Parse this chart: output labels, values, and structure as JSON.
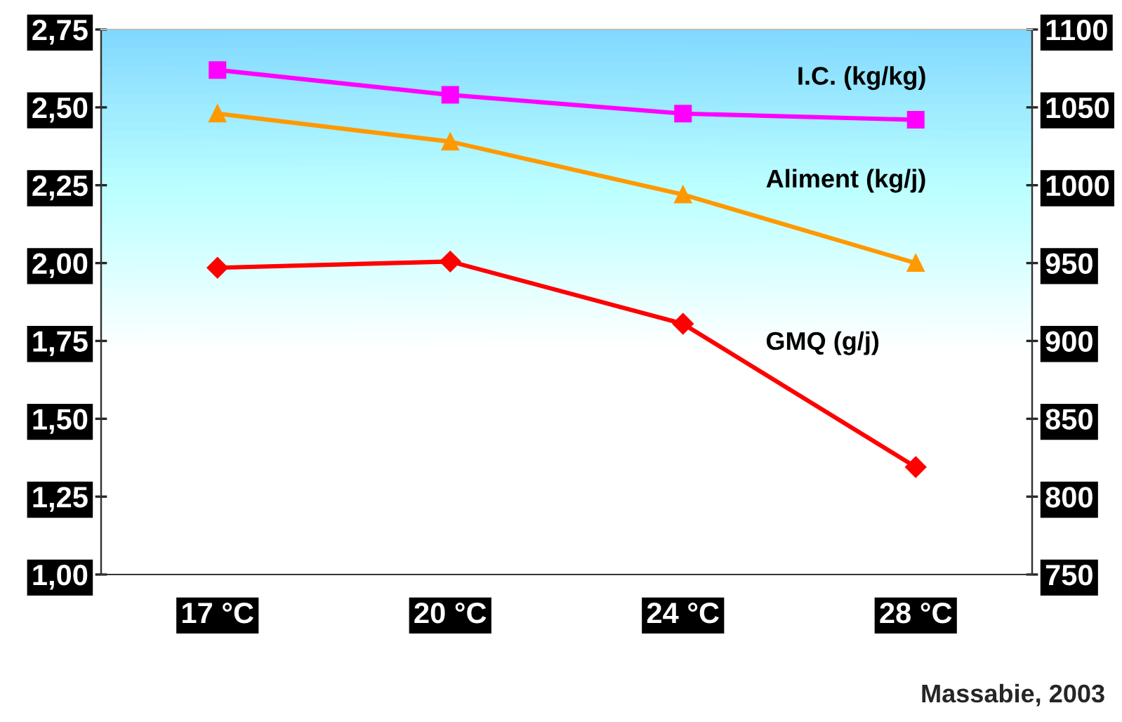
{
  "chart_data": {
    "type": "line",
    "categories": [
      "17 °C",
      "20 °C",
      "24 °C",
      "28 °C"
    ],
    "series": [
      {
        "name": "I.C. (kg/kg)",
        "color": "#ff00ff",
        "marker": "square",
        "values": [
          2.62,
          2.54,
          2.48,
          2.46
        ]
      },
      {
        "name": "Aliment (kg/j)",
        "color": "#ff9900",
        "marker": "triangle",
        "values": [
          2.48,
          2.39,
          2.22,
          2.0
        ]
      },
      {
        "name": "GMQ (g/j)",
        "color": "#ff0000",
        "marker": "diamond",
        "axis": "y2",
        "values": [
          947,
          951,
          911,
          819
        ]
      }
    ],
    "ylim": [
      1.0,
      2.75
    ],
    "yticks": [
      {
        "value": 1.0,
        "label": "1,00"
      },
      {
        "value": 1.25,
        "label": "1,25"
      },
      {
        "value": 1.5,
        "label": "1,50"
      },
      {
        "value": 1.75,
        "label": "1,75"
      },
      {
        "value": 2.0,
        "label": "2,00"
      },
      {
        "value": 2.25,
        "label": "2,25"
      },
      {
        "value": 2.5,
        "label": "2,50"
      },
      {
        "value": 2.75,
        "label": "2,75"
      }
    ],
    "y2lim": [
      750,
      1100
    ],
    "y2ticks": [
      750,
      800,
      850,
      900,
      950,
      1000,
      1050,
      1100
    ],
    "grid": false,
    "legend": false,
    "line_style": "solid",
    "annotations": [
      "Massabie, 2003"
    ]
  }
}
